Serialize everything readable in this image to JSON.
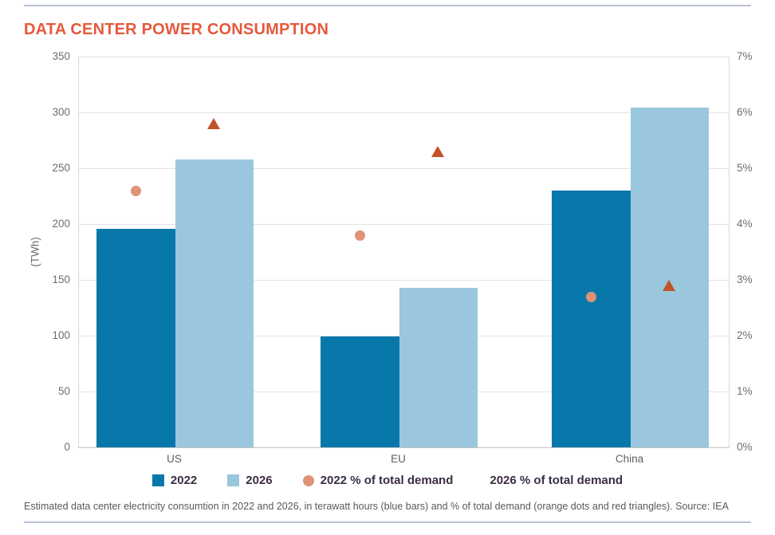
{
  "page": {
    "title": "DATA CENTER POWER CONSUMPTION",
    "caption": "Estimated data center electricity consumtion in 2022 and 2026, in terawatt hours (blue bars) and % of total demand (orange dots and red triangles). Source: IEA"
  },
  "colors": {
    "title": "#E5593C",
    "bar_2022": "#0878AB",
    "bar_2026": "#9AC7DE",
    "dot_2022_pct": "#DE9278",
    "triangle_2026_pct": "#C05327",
    "rule": "#B9C1D6",
    "legend_text": "#3B2D42",
    "axis_text": "#6E6E6E",
    "gridline": "#E3E3E3"
  },
  "legend": [
    {
      "marker": "square",
      "color": "#0878AB",
      "label": "2022"
    },
    {
      "marker": "square",
      "color": "#9AC7DE",
      "label": "2026"
    },
    {
      "marker": "circle",
      "color": "#DE9278",
      "label": "2022 % of total demand"
    },
    {
      "marker": "triangle",
      "color": "#C05327",
      "label": "2026 % of total demand"
    }
  ],
  "chart_data": {
    "type": "bar",
    "categories": [
      "US",
      "EU",
      "China"
    ],
    "series": [
      {
        "name": "2022",
        "style": "bar",
        "axis": "left",
        "unit": "TWh",
        "color": "#0878AB",
        "values": [
          196,
          99,
          230
        ]
      },
      {
        "name": "2026",
        "style": "bar",
        "axis": "left",
        "unit": "TWh",
        "color": "#9AC7DE",
        "values": [
          258,
          143,
          304
        ]
      },
      {
        "name": "2022 % of total demand",
        "style": "circle",
        "axis": "right",
        "unit": "%",
        "color": "#DE9278",
        "values": [
          4.6,
          3.8,
          2.7
        ]
      },
      {
        "name": "2026 % of total demand",
        "style": "triangle",
        "axis": "right",
        "unit": "%",
        "color": "#C05327",
        "values": [
          5.8,
          5.3,
          2.9
        ]
      }
    ],
    "title": "DATA CENTER POWER CONSUMPTION",
    "xlabel": "",
    "ylabel_left": "(TWh)",
    "ylim_left": [
      0,
      350
    ],
    "yticks_left": [
      0,
      50,
      100,
      150,
      200,
      250,
      300,
      350
    ],
    "ylim_right": [
      0,
      7
    ],
    "yticks_right": [
      "0%",
      "1%",
      "2%",
      "3%",
      "4%",
      "5%",
      "6%",
      "7%"
    ],
    "grid": true,
    "legend_position": "bottom"
  }
}
